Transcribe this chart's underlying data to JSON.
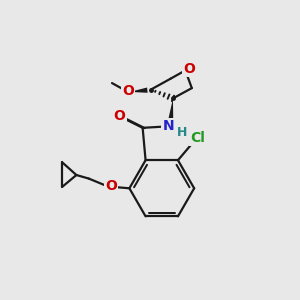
{
  "bg_color": "#e8e8e8",
  "bond_color": "#1a1a1a",
  "bond_lw": 1.6,
  "atom_colors": {
    "O": "#cc0000",
    "N": "#2222cc",
    "Cl": "#229922",
    "H": "#228888",
    "C": "#1a1a1a"
  },
  "font_size": 8.5
}
